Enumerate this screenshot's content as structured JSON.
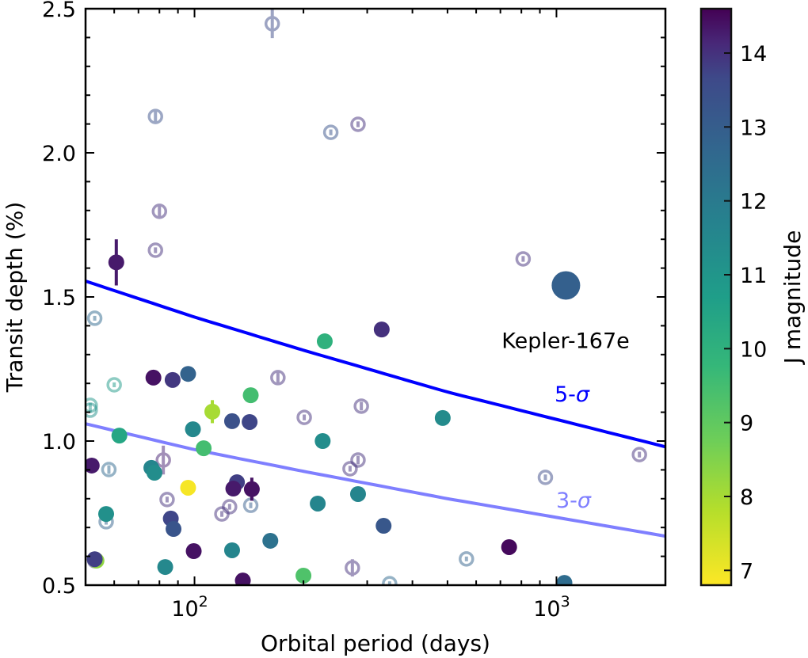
{
  "chart_data": {
    "type": "scatter",
    "title": "",
    "xlabel": "Orbital period (days)",
    "ylabel": "Transit depth (%)",
    "xscale": "log",
    "xlim": [
      50,
      2000
    ],
    "ylim": [
      0.5,
      2.5
    ],
    "x_ticks": [
      {
        "value": 100,
        "base": "10",
        "exp": "2"
      },
      {
        "value": 1000,
        "base": "10",
        "exp": "3"
      }
    ],
    "y_ticks": [
      "0.5",
      "1.0",
      "1.5",
      "2.0",
      "2.5"
    ],
    "colorbar": {
      "label": "J magnitude",
      "range": [
        6.8,
        14.6
      ],
      "colormap": "viridis_r",
      "ticks": [
        "7",
        "8",
        "9",
        "10",
        "11",
        "12",
        "13",
        "14"
      ]
    },
    "grid": false,
    "curves": [
      {
        "name": "5-σ",
        "label": "5-σ",
        "color": "#0000ff",
        "x": [
          50,
          100,
          200,
          500,
          1000,
          2000
        ],
        "y": [
          1.555,
          1.43,
          1.315,
          1.17,
          1.075,
          0.98
        ]
      },
      {
        "name": "3-σ",
        "label": "3-σ",
        "color": "#7f7fff",
        "x": [
          50,
          100,
          200,
          500,
          1000,
          2000
        ],
        "y": [
          1.06,
          0.97,
          0.895,
          0.8,
          0.735,
          0.67
        ]
      }
    ],
    "annotations": [
      {
        "text": "Kepler-167e",
        "x": 1062,
        "y": 1.35,
        "color": "#000000"
      }
    ],
    "highlight": {
      "name": "Kepler-167e",
      "x": 1062,
      "y": 1.54,
      "jmag": 12.9
    },
    "series": [
      {
        "name": "confirmed",
        "style": "filled",
        "points": [
          {
            "x": 60.8,
            "y": 1.62,
            "jmag": 14.3,
            "yerr": 0.08
          },
          {
            "x": 329,
            "y": 1.387,
            "jmag": 14.0
          },
          {
            "x": 229,
            "y": 1.346,
            "jmag": 10.0
          },
          {
            "x": 77,
            "y": 1.22,
            "jmag": 14.4
          },
          {
            "x": 87,
            "y": 1.212,
            "jmag": 13.9
          },
          {
            "x": 96,
            "y": 1.233,
            "jmag": 12.8
          },
          {
            "x": 143,
            "y": 1.159,
            "jmag": 9.5
          },
          {
            "x": 112,
            "y": 1.102,
            "jmag": 8.0,
            "yerr": 0.04
          },
          {
            "x": 127,
            "y": 1.069,
            "jmag": 13.4
          },
          {
            "x": 142,
            "y": 1.066,
            "jmag": 13.7
          },
          {
            "x": 99,
            "y": 1.041,
            "jmag": 11.5
          },
          {
            "x": 62,
            "y": 1.019,
            "jmag": 10.4
          },
          {
            "x": 226,
            "y": 1.0,
            "jmag": 11.3
          },
          {
            "x": 106,
            "y": 0.975,
            "jmag": 9.5
          },
          {
            "x": 485,
            "y": 1.08,
            "jmag": 11.4
          },
          {
            "x": 52,
            "y": 0.915,
            "jmag": 14.3
          },
          {
            "x": 76,
            "y": 0.907,
            "jmag": 11.6
          },
          {
            "x": 77.5,
            "y": 0.89,
            "jmag": 11.3
          },
          {
            "x": 96,
            "y": 0.838,
            "jmag": 6.9
          },
          {
            "x": 131,
            "y": 0.857,
            "jmag": 13.8
          },
          {
            "x": 128,
            "y": 0.835,
            "jmag": 14.3
          },
          {
            "x": 144,
            "y": 0.833,
            "jmag": 14.4,
            "yerr": 0.04
          },
          {
            "x": 57,
            "y": 0.747,
            "jmag": 11.2
          },
          {
            "x": 86,
            "y": 0.731,
            "jmag": 13.7
          },
          {
            "x": 87.5,
            "y": 0.695,
            "jmag": 13.3
          },
          {
            "x": 219,
            "y": 0.783,
            "jmag": 11.6
          },
          {
            "x": 283,
            "y": 0.816,
            "jmag": 11.6
          },
          {
            "x": 333,
            "y": 0.706,
            "jmag": 13.2
          },
          {
            "x": 99.5,
            "y": 0.618,
            "jmag": 14.4
          },
          {
            "x": 127,
            "y": 0.621,
            "jmag": 11.6
          },
          {
            "x": 162,
            "y": 0.654,
            "jmag": 12.3
          },
          {
            "x": 83,
            "y": 0.563,
            "jmag": 11.5
          },
          {
            "x": 136,
            "y": 0.516,
            "jmag": 14.4
          },
          {
            "x": 200,
            "y": 0.533,
            "jmag": 9.3
          },
          {
            "x": 740,
            "y": 0.632,
            "jmag": 14.5
          },
          {
            "x": 1052,
            "y": 0.508,
            "jmag": 12.5
          },
          {
            "x": 53.6,
            "y": 0.585,
            "jmag": 8.3
          },
          {
            "x": 53,
            "y": 0.59,
            "jmag": 13.8
          }
        ]
      },
      {
        "name": "candidates",
        "style": "open",
        "points": [
          {
            "x": 164,
            "y": 2.448,
            "jmag": 13.6,
            "yerr": 0.05
          },
          {
            "x": 78,
            "y": 2.126,
            "jmag": 13.4,
            "yerr": 0.02
          },
          {
            "x": 238,
            "y": 2.071,
            "jmag": 13.3,
            "yerr": 0.01
          },
          {
            "x": 283,
            "y": 2.099,
            "jmag": 14.0,
            "yerr": 0.01
          },
          {
            "x": 80,
            "y": 1.797,
            "jmag": 14.0,
            "yerr": 0.02
          },
          {
            "x": 78,
            "y": 1.662,
            "jmag": 14.0,
            "yerr": 0.01
          },
          {
            "x": 809,
            "y": 1.632,
            "jmag": 14.0,
            "yerr": 0.01
          },
          {
            "x": 53,
            "y": 1.426,
            "jmag": 12.6,
            "yerr": 0.005
          },
          {
            "x": 60,
            "y": 1.195,
            "jmag": 10.8,
            "yerr": 0.005
          },
          {
            "x": 51.5,
            "y": 1.124,
            "jmag": 11.0,
            "yerr": 0.005
          },
          {
            "x": 51.5,
            "y": 1.107,
            "jmag": 11.2,
            "yerr": 0.005
          },
          {
            "x": 170,
            "y": 1.22,
            "jmag": 14.0,
            "yerr": 0.02
          },
          {
            "x": 201,
            "y": 1.082,
            "jmag": 14.0,
            "yerr": 0.01
          },
          {
            "x": 289,
            "y": 1.121,
            "jmag": 14.0,
            "yerr": 0.015
          },
          {
            "x": 58,
            "y": 0.901,
            "jmag": 12.6,
            "yerr": 0.015
          },
          {
            "x": 82,
            "y": 0.934,
            "jmag": 14.2,
            "yerr": 0.05
          },
          {
            "x": 283,
            "y": 0.934,
            "jmag": 14.0,
            "yerr": 0.015
          },
          {
            "x": 269,
            "y": 0.904,
            "jmag": 14.0,
            "yerr": 0.01
          },
          {
            "x": 1695,
            "y": 0.953,
            "jmag": 14.0,
            "yerr": 0.01
          },
          {
            "x": 932,
            "y": 0.874,
            "jmag": 13.6,
            "yerr": 0.01
          },
          {
            "x": 84,
            "y": 0.797,
            "jmag": 14.0,
            "yerr": 0.01
          },
          {
            "x": 119,
            "y": 0.747,
            "jmag": 14.0,
            "yerr": 0.01
          },
          {
            "x": 125,
            "y": 0.772,
            "jmag": 14.0,
            "yerr": 0.01
          },
          {
            "x": 143,
            "y": 0.777,
            "jmag": 13.0,
            "yerr": 0.01
          },
          {
            "x": 57,
            "y": 0.72,
            "jmag": 12.8,
            "yerr": 0.01
          },
          {
            "x": 564,
            "y": 0.591,
            "jmag": 12.8,
            "yerr": 0.005
          },
          {
            "x": 273,
            "y": 0.56,
            "jmag": 14.0,
            "yerr": 0.03
          },
          {
            "x": 346,
            "y": 0.505,
            "jmag": 12.6,
            "yerr": 0.005
          },
          {
            "x": 53,
            "y": 0.585,
            "jmag": 13.8,
            "yerr": 0.005
          }
        ]
      }
    ]
  }
}
